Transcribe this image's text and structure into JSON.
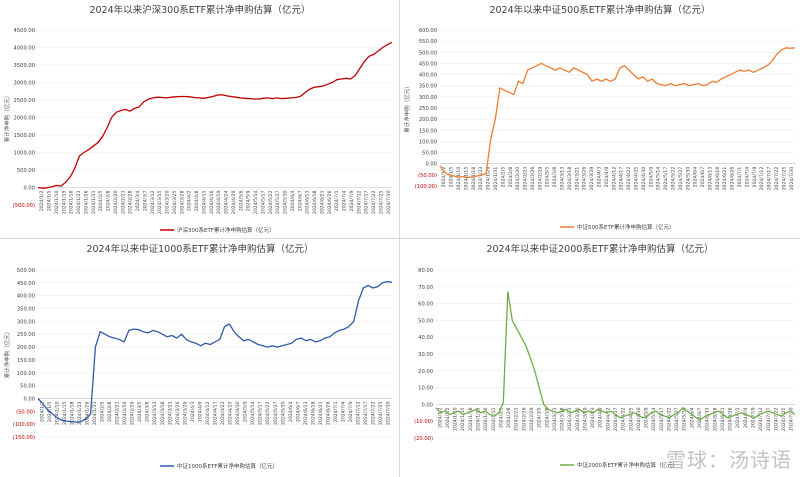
{
  "watermark": "雪球：汤诗语",
  "chart_data": [
    {
      "type": "line",
      "title": "2024年以来沪深300系ETF累计净申购估算（亿元）",
      "ylabel": "累计净申购（亿元）",
      "ylim": [
        -500,
        4500
      ],
      "yticks": [
        -500,
        0,
        500,
        1000,
        1500,
        2000,
        2500,
        3000,
        3500,
        4000,
        4500
      ],
      "ytick_labels": [
        "(500.00)",
        "0.00",
        "500.00",
        "1000.00",
        "1500.00",
        "2000.00",
        "2500.00",
        "3000.00",
        "3500.00",
        "4000.00",
        "4500.00"
      ],
      "x_start": "2024/1/2",
      "x_end": "2024/7/30",
      "xtick_labels": [
        "2024/1/2",
        "2024/1/5",
        "2024/1/10",
        "2024/1/15",
        "2024/1/18",
        "2024/1/23",
        "2024/1/26",
        "2024/1/31",
        "2024/2/5",
        "2024/2/8",
        "2024/2/20",
        "2024/2/23",
        "2024/2/28",
        "2024/3/4",
        "2024/3/7",
        "2024/3/12",
        "2024/3/15",
        "2024/3/20",
        "2024/3/25",
        "2024/3/28",
        "2024/4/2",
        "2024/4/8",
        "2024/4/11",
        "2024/4/16",
        "2024/4/19",
        "2024/4/24",
        "2024/4/29",
        "2024/5/6",
        "2024/5/9",
        "2024/5/14",
        "2024/5/17",
        "2024/5/22",
        "2024/5/27",
        "2024/5/30",
        "2024/6/4",
        "2024/6/7",
        "2024/6/13",
        "2024/6/18",
        "2024/6/21",
        "2024/6/26",
        "2024/7/1",
        "2024/7/4",
        "2024/7/9",
        "2024/7/12",
        "2024/7/17",
        "2024/7/22",
        "2024/7/25",
        "2024/7/30"
      ],
      "color": "#c00000",
      "legend": "top",
      "series": [
        {
          "name": "沪深300系ETF累计净申购估算",
          "values": [
            0,
            -20,
            -10,
            20,
            60,
            40,
            150,
            300,
            550,
            900,
            1000,
            1080,
            1180,
            1280,
            1450,
            1700,
            2000,
            2150,
            2200,
            2230,
            2180,
            2260,
            2300,
            2450,
            2520,
            2560,
            2580,
            2570,
            2560,
            2580,
            2590,
            2600,
            2600,
            2590,
            2570,
            2560,
            2550,
            2570,
            2600,
            2640,
            2650,
            2620,
            2600,
            2580,
            2560,
            2550,
            2540,
            2530,
            2530,
            2550,
            2560,
            2540,
            2560,
            2540,
            2550,
            2560,
            2570,
            2600,
            2700,
            2800,
            2860,
            2880,
            2900,
            2950,
            3000,
            3080,
            3100,
            3120,
            3100,
            3200,
            3400,
            3600,
            3750,
            3800,
            3900,
            4000,
            4080,
            4150
          ]
        }
      ]
    },
    {
      "type": "line",
      "title": "2024年以来中证500系ETF累计净申购估算（亿元）",
      "ylabel": "累计净申购（亿元）",
      "ylim": [
        -100,
        600
      ],
      "yticks": [
        -100,
        -50,
        0,
        50,
        100,
        150,
        200,
        250,
        300,
        350,
        400,
        450,
        500,
        550,
        600
      ],
      "ytick_labels": [
        "(100.00)",
        "(50.00)",
        "0.00",
        "50.00",
        "100.00",
        "150.00",
        "200.00",
        "250.00",
        "300.00",
        "350.00",
        "400.00",
        "450.00",
        "500.00",
        "550.00",
        "600.00"
      ],
      "x_start": "2024/1/2",
      "x_end": "2024/7/30",
      "xtick_labels": [
        "2024/1/2",
        "2024/1/5",
        "2024/1/10",
        "2024/1/15",
        "2024/1/18",
        "2024/1/23",
        "2024/1/26",
        "2024/1/31",
        "2024/2/5",
        "2024/2/8",
        "2024/2/20",
        "2024/2/23",
        "2024/2/26",
        "2024/2/29",
        "2024/3/5",
        "2024/3/8",
        "2024/3/13",
        "2024/3/18",
        "2024/3/21",
        "2024/3/26",
        "2024/3/29",
        "2024/4/3",
        "2024/4/9",
        "2024/4/12",
        "2024/4/17",
        "2024/4/22",
        "2024/4/25",
        "2024/4/30",
        "2024/5/9",
        "2024/5/14",
        "2024/5/17",
        "2024/5/22",
        "2024/5/27",
        "2024/5/30",
        "2024/6/4",
        "2024/6/7",
        "2024/6/13",
        "2024/6/18",
        "2024/6/21",
        "2024/6/26",
        "2024/7/1",
        "2024/7/4",
        "2024/7/9",
        "2024/7/12",
        "2024/7/17",
        "2024/7/22",
        "2024/7/25",
        "2024/7/30"
      ],
      "color": "#ed7d31",
      "legend": "bottom",
      "series": [
        {
          "name": "中证500系ETF累计净申购估算",
          "values": [
            -10,
            -40,
            -50,
            -55,
            -60,
            -58,
            -62,
            -60,
            -55,
            -50,
            -45,
            110,
            200,
            340,
            330,
            320,
            310,
            370,
            360,
            420,
            430,
            440,
            450,
            440,
            430,
            420,
            430,
            420,
            410,
            430,
            420,
            410,
            400,
            370,
            380,
            370,
            380,
            370,
            380,
            430,
            440,
            420,
            400,
            380,
            390,
            370,
            380,
            360,
            355,
            350,
            360,
            350,
            355,
            360,
            350,
            355,
            360,
            350,
            355,
            370,
            365,
            380,
            390,
            400,
            410,
            420,
            415,
            420,
            410,
            420,
            430,
            440,
            460,
            490,
            510,
            520,
            518,
            520
          ]
        }
      ]
    },
    {
      "type": "line",
      "title": "2024年以来中证1000系ETF累计净申购估算（亿元）",
      "ylabel": "累计净申购（亿元）",
      "ylim": [
        -150,
        500
      ],
      "yticks": [
        -150,
        -100,
        -50,
        0,
        50,
        100,
        150,
        200,
        250,
        300,
        350,
        400,
        450,
        500
      ],
      "ytick_labels": [
        "(150.00)",
        "(100.00)",
        "(50.00)",
        "0.00",
        "50.00",
        "100.00",
        "150.00",
        "200.00",
        "250.00",
        "300.00",
        "350.00",
        "400.00",
        "450.00",
        "500.00"
      ],
      "x_start": "2024/1/2",
      "x_end": "2024/7/30",
      "xtick_labels": [
        "2024/1/2",
        "2024/1/5",
        "2024/1/10",
        "2024/1/15",
        "2024/1/18",
        "2024/1/23",
        "2024/1/26",
        "2024/1/31",
        "2024/2/5",
        "2024/2/8",
        "2024/2/21",
        "2024/2/26",
        "2024/2/29",
        "2024/3/5",
        "2024/3/8",
        "2024/3/13",
        "2024/3/18",
        "2024/3/21",
        "2024/3/26",
        "2024/3/29",
        "2024/4/3",
        "2024/4/9",
        "2024/4/12",
        "2024/4/17",
        "2024/4/22",
        "2024/4/25",
        "2024/4/30",
        "2024/5/9",
        "2024/5/14",
        "2024/5/17",
        "2024/5/22",
        "2024/5/27",
        "2024/5/30",
        "2024/6/4",
        "2024/6/7",
        "2024/6/13",
        "2024/6/18",
        "2024/6/21",
        "2024/6/26",
        "2024/7/1",
        "2024/7/4",
        "2024/7/9",
        "2024/7/12",
        "2024/7/17",
        "2024/7/22",
        "2024/7/25",
        "2024/7/30"
      ],
      "color": "#2e5aa8",
      "legend": "bottom",
      "series": [
        {
          "name": "中证1000系ETF累计净申购估算",
          "values": [
            0,
            -20,
            -45,
            -60,
            -75,
            -85,
            -88,
            -90,
            -92,
            -90,
            -80,
            -60,
            200,
            260,
            250,
            240,
            235,
            230,
            220,
            265,
            270,
            268,
            260,
            255,
            265,
            260,
            250,
            240,
            245,
            235,
            250,
            230,
            220,
            215,
            205,
            215,
            210,
            220,
            230,
            280,
            290,
            260,
            240,
            225,
            230,
            220,
            210,
            205,
            200,
            205,
            200,
            205,
            210,
            215,
            230,
            235,
            225,
            230,
            220,
            225,
            235,
            240,
            255,
            265,
            270,
            280,
            300,
            380,
            430,
            440,
            430,
            435,
            450,
            455,
            452
          ]
        }
      ]
    },
    {
      "type": "line",
      "title": "2024年以来中证2000系ETF累计净申购估算（亿元）",
      "ylabel": "",
      "ylim": [
        -20,
        80
      ],
      "yticks": [
        -20,
        -10,
        0,
        10,
        20,
        30,
        40,
        50,
        60,
        70,
        80
      ],
      "ytick_labels": [
        "(20.00)",
        "(10.00)",
        "0.00",
        "10.00",
        "20.00",
        "30.00",
        "40.00",
        "50.00",
        "60.00",
        "70.00",
        "80.00"
      ],
      "x_start": "2024/1/2",
      "x_end": "2024/7/30",
      "xtick_labels": [
        "2024/1/2",
        "2024/1/5",
        "2024/1/10",
        "2024/1/15",
        "2024/1/18",
        "2024/1/23",
        "2024/1/26",
        "2024/1/31",
        "2024/2/5",
        "2024/2/8",
        "2024/2/21",
        "2024/2/26",
        "2024/2/29",
        "2024/3/5",
        "2024/3/8",
        "2024/3/13",
        "2024/3/18",
        "2024/3/21",
        "2024/3/26",
        "2024/3/29",
        "2024/4/3",
        "2024/4/9",
        "2024/4/12",
        "2024/4/17",
        "2024/4/22",
        "2024/4/25",
        "2024/4/30",
        "2024/5/9",
        "2024/5/14",
        "2024/5/17",
        "2024/5/22",
        "2024/5/27",
        "2024/5/30",
        "2024/6/4",
        "2024/6/7",
        "2024/6/13",
        "2024/6/18",
        "2024/6/21",
        "2024/6/26",
        "2024/7/1",
        "2024/7/4",
        "2024/7/9",
        "2024/7/12",
        "2024/7/17",
        "2024/7/22",
        "2024/7/25",
        "2024/7/30"
      ],
      "color": "#70ad47",
      "legend": "bottom",
      "series": [
        {
          "name": "中证2000系ETF累计净申购估算",
          "values": [
            -2,
            -5,
            -4,
            -6,
            -5,
            -4,
            -6,
            -5,
            -4,
            -3,
            -5,
            -4,
            -6,
            -7,
            -5,
            1,
            67,
            50,
            45,
            40,
            35,
            28,
            20,
            10,
            0,
            -3,
            -4,
            -5,
            -4,
            -3,
            -5,
            -4,
            -3,
            -5,
            -4,
            -5,
            -3,
            -4,
            -5,
            -4,
            -6,
            -8,
            -7,
            -6,
            -5,
            -6,
            -8,
            -7,
            -5,
            -4,
            -6,
            -7,
            -8,
            -6,
            -5,
            -2,
            -4,
            -6,
            -8,
            -9,
            -7,
            -6,
            -5,
            -4,
            -6,
            -8,
            -7,
            -6,
            -5,
            -6,
            -7,
            -8,
            -6,
            -5,
            -4,
            -5,
            -6,
            -7,
            -5,
            -4,
            -6
          ]
        }
      ]
    }
  ]
}
